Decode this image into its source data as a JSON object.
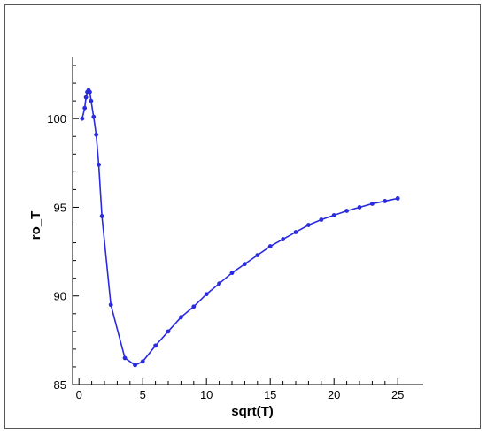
{
  "chart_data": {
    "type": "line",
    "title": "",
    "xlabel": "sqrt(T)",
    "ylabel": "ro_T",
    "xlim": [
      -0.5,
      27
    ],
    "ylim": [
      85,
      103.5
    ],
    "xticks": [
      0,
      5,
      10,
      15,
      20,
      25
    ],
    "yticks": [
      85,
      90,
      95,
      100
    ],
    "grid": false,
    "legend": "none",
    "line_color": "#2a2adf",
    "marker": "circle",
    "series": [
      {
        "x": [
          0.25,
          0.45,
          0.55,
          0.65,
          0.75,
          0.85,
          0.95,
          1.15,
          1.35,
          1.55,
          1.8,
          2.5,
          3.6,
          4.4,
          5.0,
          6.0,
          7.0,
          8.0,
          9.0,
          10.0,
          11.0,
          12.0,
          13.0,
          14.0,
          15.0,
          16.0,
          17.0,
          18.0,
          19.0,
          20.0,
          21.0,
          22.0,
          23.0,
          24.0,
          25.0
        ],
        "y": [
          100.0,
          100.6,
          101.2,
          101.5,
          101.6,
          101.5,
          101.0,
          100.1,
          99.1,
          97.4,
          94.5,
          89.5,
          86.5,
          86.1,
          86.3,
          87.2,
          88.0,
          88.8,
          89.4,
          90.1,
          90.7,
          91.3,
          91.8,
          92.3,
          92.8,
          93.2,
          93.6,
          94.0,
          94.3,
          94.55,
          94.8,
          95.0,
          95.2,
          95.35,
          95.5
        ]
      }
    ]
  }
}
